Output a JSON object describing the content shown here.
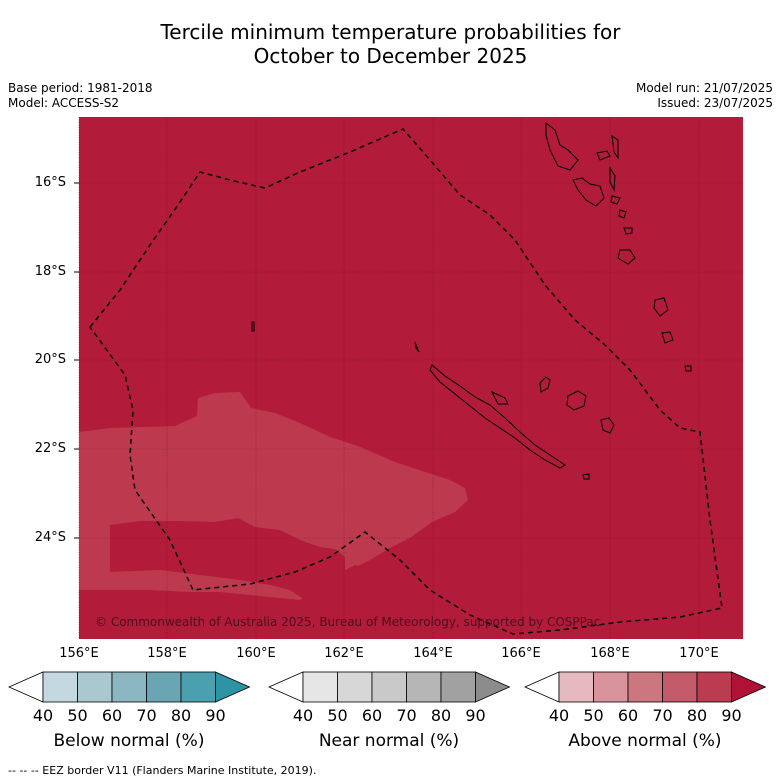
{
  "title": {
    "line1": "Tercile minimum temperature probabilities for",
    "line2": "October to December 2025"
  },
  "meta": {
    "base_period": "Base period: 1981-2018",
    "model": "Model: ACCESS-S2",
    "model_run": "Model run: 21/07/2025",
    "issued": "Issued: 23/07/2025"
  },
  "map": {
    "lat_labels": [
      "16°S",
      "18°S",
      "20°S",
      "22°S",
      "24°S"
    ],
    "lon_labels": [
      "156°E",
      "158°E",
      "160°E",
      "162°E",
      "164°E",
      "166°E",
      "168°E",
      "170°E"
    ],
    "lat_values": [
      -16,
      -18,
      -20,
      -22,
      -24
    ],
    "lon_values": [
      156,
      158,
      160,
      162,
      164,
      166,
      168,
      170
    ],
    "copyright": "© Commonwealth of Australia 2025, Bureau of Meteorology, supported by COSPPac",
    "colors": {
      "above_90": "#b21c3a",
      "above_80": "#bd3a4e",
      "above_70": "#c0485a",
      "eez_line": "#000000"
    }
  },
  "colorbars": [
    {
      "label": "Below normal (%)",
      "ticks": [
        "40",
        "50",
        "60",
        "70",
        "80",
        "90"
      ],
      "colors": [
        "#c3d8df",
        "#a9c8d0",
        "#8bb6c2",
        "#6aa5b3",
        "#4ba0b0",
        "#2f93a6"
      ]
    },
    {
      "label": "Near normal (%)",
      "ticks": [
        "40",
        "50",
        "60",
        "70",
        "80",
        "90"
      ],
      "colors": [
        "#e6e6e6",
        "#d7d7d7",
        "#c9c9c9",
        "#b6b6b6",
        "#a1a1a1",
        "#8c8c8c"
      ]
    },
    {
      "label": "Above normal (%)",
      "ticks": [
        "40",
        "50",
        "60",
        "70",
        "80",
        "90"
      ],
      "colors": [
        "#e6b9c0",
        "#d9939c",
        "#cc7680",
        "#c25a69",
        "#bb3b51",
        "#b01236"
      ]
    }
  ],
  "footer": "--  --  -- EEZ border V11 (Flanders Marine Institute, 2019)."
}
